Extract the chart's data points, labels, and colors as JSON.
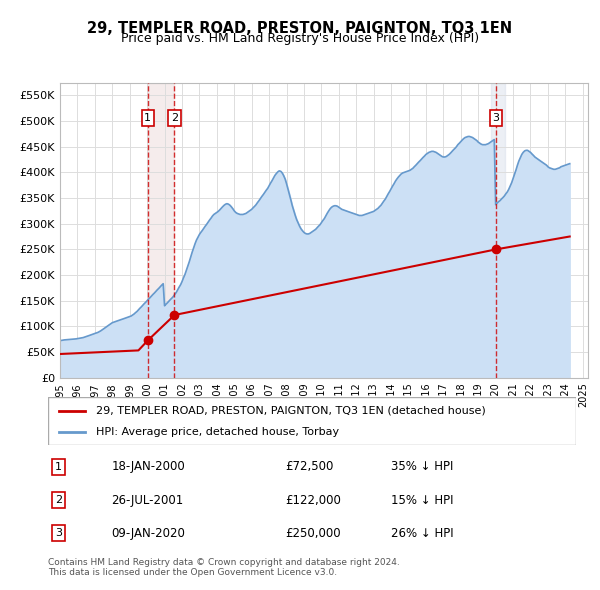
{
  "title": "29, TEMPLER ROAD, PRESTON, PAIGNTON, TQ3 1EN",
  "subtitle": "Price paid vs. HM Land Registry's House Price Index (HPI)",
  "ylim": [
    0,
    575000
  ],
  "yticks": [
    0,
    50000,
    100000,
    150000,
    200000,
    250000,
    300000,
    350000,
    400000,
    450000,
    500000,
    550000
  ],
  "ytick_labels": [
    "£0",
    "£50K",
    "£100K",
    "£150K",
    "£200K",
    "£250K",
    "£300K",
    "£350K",
    "£400K",
    "£450K",
    "£500K",
    "£550K"
  ],
  "price_paid_color": "#cc0000",
  "hpi_color": "#6699cc",
  "hpi_fill_color": "#cce0f5",
  "transaction_color": "#cc0000",
  "vline_color": "#cc0000",
  "grid_color": "#dddddd",
  "bg_color": "#ffffff",
  "transactions": [
    {
      "year": 2000.04,
      "price": 72500,
      "label": "1"
    },
    {
      "year": 2001.57,
      "price": 122000,
      "label": "2"
    },
    {
      "year": 2020.03,
      "price": 250000,
      "label": "3"
    }
  ],
  "legend_label_red": "29, TEMPLER ROAD, PRESTON, PAIGNTON, TQ3 1EN (detached house)",
  "legend_label_blue": "HPI: Average price, detached house, Torbay",
  "table_rows": [
    {
      "num": "1",
      "date": "18-JAN-2000",
      "price": "£72,500",
      "change": "35% ↓ HPI"
    },
    {
      "num": "2",
      "date": "26-JUL-2001",
      "price": "£122,000",
      "change": "15% ↓ HPI"
    },
    {
      "num": "3",
      "date": "09-JAN-2020",
      "price": "£250,000",
      "change": "26% ↓ HPI"
    }
  ],
  "footnote": "Contains HM Land Registry data © Crown copyright and database right 2024.\nThis data is licensed under the Open Government Licence v3.0.",
  "hpi_data": {
    "years": [
      1995.0,
      1995.08,
      1995.17,
      1995.25,
      1995.33,
      1995.42,
      1995.5,
      1995.58,
      1995.67,
      1995.75,
      1995.83,
      1995.92,
      1996.0,
      1996.08,
      1996.17,
      1996.25,
      1996.33,
      1996.42,
      1996.5,
      1996.58,
      1996.67,
      1996.75,
      1996.83,
      1996.92,
      1997.0,
      1997.08,
      1997.17,
      1997.25,
      1997.33,
      1997.42,
      1997.5,
      1997.58,
      1997.67,
      1997.75,
      1997.83,
      1997.92,
      1998.0,
      1998.08,
      1998.17,
      1998.25,
      1998.33,
      1998.42,
      1998.5,
      1998.58,
      1998.67,
      1998.75,
      1998.83,
      1998.92,
      1999.0,
      1999.08,
      1999.17,
      1999.25,
      1999.33,
      1999.42,
      1999.5,
      1999.58,
      1999.67,
      1999.75,
      1999.83,
      1999.92,
      2000.0,
      2000.08,
      2000.17,
      2000.25,
      2000.33,
      2000.42,
      2000.5,
      2000.58,
      2000.67,
      2000.75,
      2000.83,
      2000.92,
      2001.0,
      2001.08,
      2001.17,
      2001.25,
      2001.33,
      2001.42,
      2001.5,
      2001.58,
      2001.67,
      2001.75,
      2001.83,
      2001.92,
      2002.0,
      2002.08,
      2002.17,
      2002.25,
      2002.33,
      2002.42,
      2002.5,
      2002.58,
      2002.67,
      2002.75,
      2002.83,
      2002.92,
      2003.0,
      2003.08,
      2003.17,
      2003.25,
      2003.33,
      2003.42,
      2003.5,
      2003.58,
      2003.67,
      2003.75,
      2003.83,
      2003.92,
      2004.0,
      2004.08,
      2004.17,
      2004.25,
      2004.33,
      2004.42,
      2004.5,
      2004.58,
      2004.67,
      2004.75,
      2004.83,
      2004.92,
      2005.0,
      2005.08,
      2005.17,
      2005.25,
      2005.33,
      2005.42,
      2005.5,
      2005.58,
      2005.67,
      2005.75,
      2005.83,
      2005.92,
      2006.0,
      2006.08,
      2006.17,
      2006.25,
      2006.33,
      2006.42,
      2006.5,
      2006.58,
      2006.67,
      2006.75,
      2006.83,
      2006.92,
      2007.0,
      2007.08,
      2007.17,
      2007.25,
      2007.33,
      2007.42,
      2007.5,
      2007.58,
      2007.67,
      2007.75,
      2007.83,
      2007.92,
      2008.0,
      2008.08,
      2008.17,
      2008.25,
      2008.33,
      2008.42,
      2008.5,
      2008.58,
      2008.67,
      2008.75,
      2008.83,
      2008.92,
      2009.0,
      2009.08,
      2009.17,
      2009.25,
      2009.33,
      2009.42,
      2009.5,
      2009.58,
      2009.67,
      2009.75,
      2009.83,
      2009.92,
      2010.0,
      2010.08,
      2010.17,
      2010.25,
      2010.33,
      2010.42,
      2010.5,
      2010.58,
      2010.67,
      2010.75,
      2010.83,
      2010.92,
      2011.0,
      2011.08,
      2011.17,
      2011.25,
      2011.33,
      2011.42,
      2011.5,
      2011.58,
      2011.67,
      2011.75,
      2011.83,
      2011.92,
      2012.0,
      2012.08,
      2012.17,
      2012.25,
      2012.33,
      2012.42,
      2012.5,
      2012.58,
      2012.67,
      2012.75,
      2012.83,
      2012.92,
      2013.0,
      2013.08,
      2013.17,
      2013.25,
      2013.33,
      2013.42,
      2013.5,
      2013.58,
      2013.67,
      2013.75,
      2013.83,
      2013.92,
      2014.0,
      2014.08,
      2014.17,
      2014.25,
      2014.33,
      2014.42,
      2014.5,
      2014.58,
      2014.67,
      2014.75,
      2014.83,
      2014.92,
      2015.0,
      2015.08,
      2015.17,
      2015.25,
      2015.33,
      2015.42,
      2015.5,
      2015.58,
      2015.67,
      2015.75,
      2015.83,
      2015.92,
      2016.0,
      2016.08,
      2016.17,
      2016.25,
      2016.33,
      2016.42,
      2016.5,
      2016.58,
      2016.67,
      2016.75,
      2016.83,
      2016.92,
      2017.0,
      2017.08,
      2017.17,
      2017.25,
      2017.33,
      2017.42,
      2017.5,
      2017.58,
      2017.67,
      2017.75,
      2017.83,
      2017.92,
      2018.0,
      2018.08,
      2018.17,
      2018.25,
      2018.33,
      2018.42,
      2018.5,
      2018.58,
      2018.67,
      2018.75,
      2018.83,
      2018.92,
      2019.0,
      2019.08,
      2019.17,
      2019.25,
      2019.33,
      2019.42,
      2019.5,
      2019.58,
      2019.67,
      2019.75,
      2019.83,
      2019.92,
      2020.0,
      2020.08,
      2020.17,
      2020.25,
      2020.33,
      2020.42,
      2020.5,
      2020.58,
      2020.67,
      2020.75,
      2020.83,
      2020.92,
      2021.0,
      2021.08,
      2021.17,
      2021.25,
      2021.33,
      2021.42,
      2021.5,
      2021.58,
      2021.67,
      2021.75,
      2021.83,
      2021.92,
      2022.0,
      2022.08,
      2022.17,
      2022.25,
      2022.33,
      2022.42,
      2022.5,
      2022.58,
      2022.67,
      2022.75,
      2022.83,
      2022.92,
      2023.0,
      2023.08,
      2023.17,
      2023.25,
      2023.33,
      2023.42,
      2023.5,
      2023.58,
      2023.67,
      2023.75,
      2023.83,
      2023.92,
      2024.0,
      2024.08,
      2024.17,
      2024.25
    ],
    "values": [
      72000,
      72500,
      73000,
      73500,
      73800,
      74000,
      74200,
      74500,
      74800,
      75000,
      75200,
      75500,
      76000,
      76500,
      77000,
      77500,
      78000,
      79000,
      80000,
      81000,
      82000,
      83000,
      84000,
      85000,
      86000,
      87000,
      88000,
      89500,
      91000,
      93000,
      95000,
      97000,
      99000,
      101000,
      103000,
      105000,
      107000,
      108000,
      109000,
      110000,
      111000,
      112000,
      113000,
      114000,
      115000,
      116000,
      117000,
      118000,
      119000,
      120000,
      122000,
      124000,
      126500,
      129000,
      132000,
      135000,
      138000,
      141000,
      144000,
      147000,
      150000,
      153000,
      156000,
      159000,
      162000,
      165000,
      168000,
      171000,
      174000,
      177000,
      180000,
      183000,
      140000,
      143000,
      146000,
      149000,
      152000,
      155000,
      158000,
      162000,
      166000,
      171000,
      176000,
      181000,
      187000,
      194000,
      201000,
      209000,
      217000,
      226000,
      235000,
      244000,
      253000,
      261000,
      268000,
      274000,
      279000,
      283000,
      287000,
      291000,
      295000,
      299000,
      303000,
      307000,
      311000,
      315000,
      318000,
      320000,
      322000,
      324000,
      327000,
      330000,
      333000,
      336000,
      338000,
      339000,
      338000,
      336000,
      333000,
      329000,
      325000,
      322000,
      320000,
      319000,
      318000,
      318000,
      318000,
      319000,
      320000,
      322000,
      324000,
      326000,
      328000,
      331000,
      334000,
      337000,
      341000,
      345000,
      349000,
      353000,
      357000,
      361000,
      365000,
      369000,
      374000,
      379000,
      384000,
      389000,
      394000,
      398000,
      401000,
      403000,
      402000,
      399000,
      394000,
      387000,
      378000,
      368000,
      357000,
      346000,
      335000,
      325000,
      316000,
      308000,
      301000,
      295000,
      290000,
      286000,
      283000,
      281000,
      280000,
      280000,
      281000,
      283000,
      285000,
      287000,
      289000,
      292000,
      295000,
      298000,
      302000,
      306000,
      310000,
      315000,
      320000,
      325000,
      329000,
      332000,
      334000,
      335000,
      335000,
      334000,
      332000,
      330000,
      328000,
      327000,
      326000,
      325000,
      324000,
      323000,
      322000,
      321000,
      320000,
      319000,
      318000,
      317000,
      316000,
      316000,
      316000,
      317000,
      318000,
      319000,
      320000,
      321000,
      322000,
      323000,
      324000,
      326000,
      328000,
      330000,
      333000,
      336000,
      340000,
      344000,
      348000,
      353000,
      358000,
      363000,
      368000,
      373000,
      378000,
      383000,
      387000,
      391000,
      394000,
      397000,
      399000,
      400000,
      401000,
      402000,
      403000,
      404000,
      406000,
      408000,
      411000,
      414000,
      417000,
      420000,
      423000,
      426000,
      429000,
      432000,
      435000,
      437000,
      439000,
      440000,
      441000,
      441000,
      440000,
      439000,
      437000,
      435000,
      433000,
      431000,
      430000,
      430000,
      431000,
      433000,
      435000,
      438000,
      441000,
      444000,
      447000,
      450000,
      454000,
      457000,
      460000,
      463000,
      466000,
      468000,
      469000,
      470000,
      470000,
      469000,
      468000,
      466000,
      464000,
      462000,
      459000,
      457000,
      455000,
      454000,
      454000,
      454000,
      455000,
      456000,
      458000,
      460000,
      462000,
      464000,
      337000,
      340000,
      343000,
      345000,
      348000,
      351000,
      354000,
      358000,
      362000,
      367000,
      373000,
      380000,
      388000,
      396000,
      405000,
      414000,
      422000,
      429000,
      435000,
      439000,
      442000,
      443000,
      443000,
      441000,
      439000,
      436000,
      433000,
      430000,
      428000,
      426000,
      424000,
      422000,
      420000,
      418000,
      416000,
      414000,
      411000,
      409000,
      408000,
      407000,
      406000,
      406000,
      407000,
      408000,
      409000,
      411000,
      412000,
      413000,
      414000,
      415000,
      416000,
      417000
    ]
  },
  "price_paid_data": {
    "years": [
      1995.0,
      1999.5,
      2000.04,
      2001.57,
      2020.03,
      2024.25
    ],
    "values": [
      46000,
      53000,
      72500,
      122000,
      250000,
      275000
    ]
  }
}
